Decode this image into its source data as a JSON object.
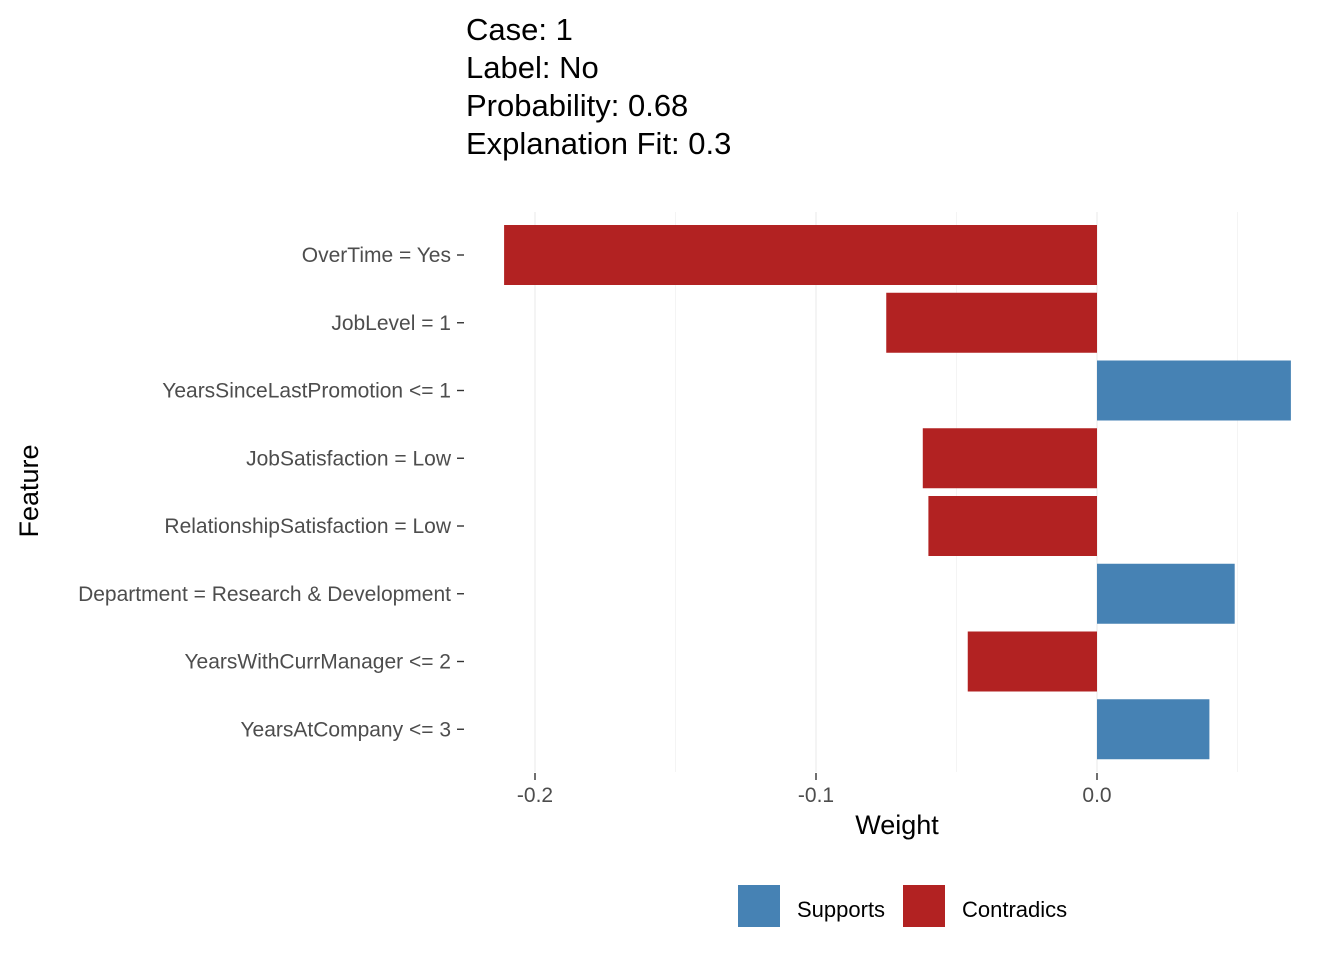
{
  "chart_data": {
    "type": "bar",
    "orientation": "horizontal",
    "title_lines": [
      "Case: 1",
      "Label: No",
      "Probability: 0.68",
      "Explanation Fit: 0.3"
    ],
    "xlabel": "Weight",
    "ylabel": "Feature",
    "xlim": [
      -0.211,
      0.069
    ],
    "x_ticks": [
      {
        "value": -0.2,
        "label": "-0.2"
      },
      {
        "value": -0.1,
        "label": "-0.1"
      },
      {
        "value": 0.0,
        "label": "0.0"
      }
    ],
    "x_minor_ticks": [
      -0.15,
      -0.05,
      0.05
    ],
    "grid": true,
    "categories": [
      "OverTime = Yes",
      "JobLevel = 1",
      "YearsSinceLastPromotion <= 1",
      "JobSatisfaction = Low",
      "RelationshipSatisfaction = Low",
      "Department = Research & Development",
      "YearsWithCurrManager <= 2",
      "YearsAtCompany <= 3"
    ],
    "values": [
      -0.211,
      -0.075,
      0.069,
      -0.062,
      -0.06,
      0.049,
      -0.046,
      0.04
    ],
    "groups": [
      "Contradics",
      "Contradics",
      "Supports",
      "Contradics",
      "Contradics",
      "Supports",
      "Contradics",
      "Supports"
    ],
    "legend": {
      "position": "bottom",
      "items": [
        {
          "label": "Supports",
          "color": "#4682b4"
        },
        {
          "label": "Contradics",
          "color": "#b22222"
        }
      ]
    }
  }
}
